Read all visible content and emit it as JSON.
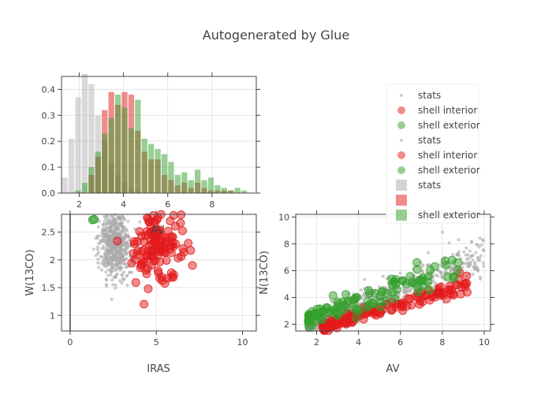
{
  "chart_data": {
    "title": "Autogenerated by Glue",
    "colors": {
      "stats": "#aaaaaa",
      "shell_interior": "#e31a1c",
      "shell_exterior": "#33a02c"
    },
    "legend": {
      "placement": "right",
      "entries": [
        {
          "label": "stats",
          "kind": "marker-small",
          "color": "#aaaaaa"
        },
        {
          "label": "shell interior",
          "kind": "marker",
          "color": "#e31a1c"
        },
        {
          "label": "shell exterior",
          "kind": "marker",
          "color": "#33a02c"
        },
        {
          "label": "stats",
          "kind": "marker-small",
          "color": "#aaaaaa"
        },
        {
          "label": "shell interior",
          "kind": "marker",
          "color": "#e31a1c"
        },
        {
          "label": "shell exterior",
          "kind": "marker",
          "color": "#33a02c"
        },
        {
          "label": "stats",
          "kind": "bar",
          "color": "#aaaaaa"
        },
        {
          "label": "",
          "kind": "bar",
          "color": "#e31a1c"
        },
        {
          "label": "shell exterior",
          "kind": "bar",
          "color": "#33a02c"
        }
      ]
    },
    "histogram": {
      "type": "bar",
      "xlabel": "",
      "ylabel": "",
      "xlim": [
        1.2,
        10
      ],
      "ylim": [
        0,
        0.45
      ],
      "xticks": [
        2,
        4,
        6,
        8
      ],
      "yticks": [
        0,
        0.1,
        0.2,
        0.3,
        0.4
      ],
      "grid": true,
      "bin_start": 1.2,
      "bin_width": 0.3,
      "series": [
        {
          "name": "stats",
          "color": "#aaaaaa",
          "values": [
            0.06,
            0.21,
            0.37,
            0.46,
            0.42,
            0.3,
            0.2,
            0.12,
            0.07,
            0.04,
            0.02,
            0.01,
            0,
            0,
            0,
            0,
            0,
            0,
            0,
            0,
            0,
            0,
            0,
            0,
            0,
            0,
            0,
            0,
            0
          ]
        },
        {
          "name": "shell interior",
          "color": "#e31a1c",
          "values": [
            0,
            0,
            0,
            0,
            0.07,
            0.14,
            0.32,
            0.39,
            0.34,
            0.39,
            0.38,
            0.24,
            0.16,
            0.13,
            0.13,
            0.07,
            0.05,
            0.03,
            0.04,
            0.02,
            0.04,
            0.02,
            0.01,
            0.01,
            0.01,
            0.01,
            0,
            0,
            0
          ]
        },
        {
          "name": "shell exterior",
          "color": "#33a02c",
          "values": [
            0,
            0,
            0.01,
            0.04,
            0.1,
            0.16,
            0.23,
            0.29,
            0.38,
            0.33,
            0.25,
            0.36,
            0.21,
            0.19,
            0.17,
            0.15,
            0.12,
            0.07,
            0.08,
            0.05,
            0.09,
            0.05,
            0.06,
            0.03,
            0.02,
            0.01,
            0.02,
            0.01,
            0
          ]
        }
      ]
    },
    "scatter_left": {
      "type": "scatter",
      "xlabel": "IRAS",
      "ylabel": "W(13CO)",
      "inner_label": "AV",
      "xlim": [
        -0.5,
        10.8
      ],
      "ylim": [
        0.72,
        2.82
      ],
      "xticks": [
        0,
        5,
        10
      ],
      "yticks": [
        1,
        1.5,
        2,
        2.5
      ],
      "grid": true,
      "series": [
        {
          "name": "stats",
          "color": "#aaaaaa",
          "cluster": {
            "cx": 2.6,
            "cy": 2.3,
            "sx": 0.45,
            "sy": 0.3,
            "n": 650
          }
        },
        {
          "name": "shell interior",
          "color": "#e31a1c",
          "cluster": {
            "cx": 5.0,
            "cy": 2.3,
            "sx": 0.7,
            "sy": 0.32,
            "n": 140
          }
        },
        {
          "name": "shell exterior",
          "color": "#33a02c",
          "points": [
            [
              1.3,
              2.72
            ],
            [
              1.4,
              2.73
            ]
          ]
        }
      ]
    },
    "scatter_right": {
      "type": "scatter",
      "xlabel": "AV",
      "ylabel": "N(13CO)",
      "xlim": [
        1.0,
        10.3
      ],
      "ylim": [
        1.5,
        10.2
      ],
      "xticks": [
        2,
        4,
        6,
        8,
        10
      ],
      "yticks": [
        2,
        4,
        6,
        8,
        10
      ],
      "grid": true,
      "series": [
        {
          "name": "stats",
          "color": "#aaaaaa",
          "trend": {
            "x0": 1.5,
            "x1": 10.0,
            "y0": 1.8,
            "slope": 0.62,
            "spread": 0.9,
            "n": 800
          }
        },
        {
          "name": "shell interior",
          "color": "#e31a1c",
          "trend": {
            "x0": 2.3,
            "x1": 9.2,
            "y0": 1.8,
            "slope": 0.45,
            "spread": 0.45,
            "n": 170
          }
        },
        {
          "name": "shell exterior",
          "color": "#33a02c",
          "trend": {
            "x0": 1.6,
            "x1": 9.2,
            "y0": 2.4,
            "slope": 0.55,
            "spread": 0.8,
            "n": 110
          }
        }
      ]
    }
  }
}
